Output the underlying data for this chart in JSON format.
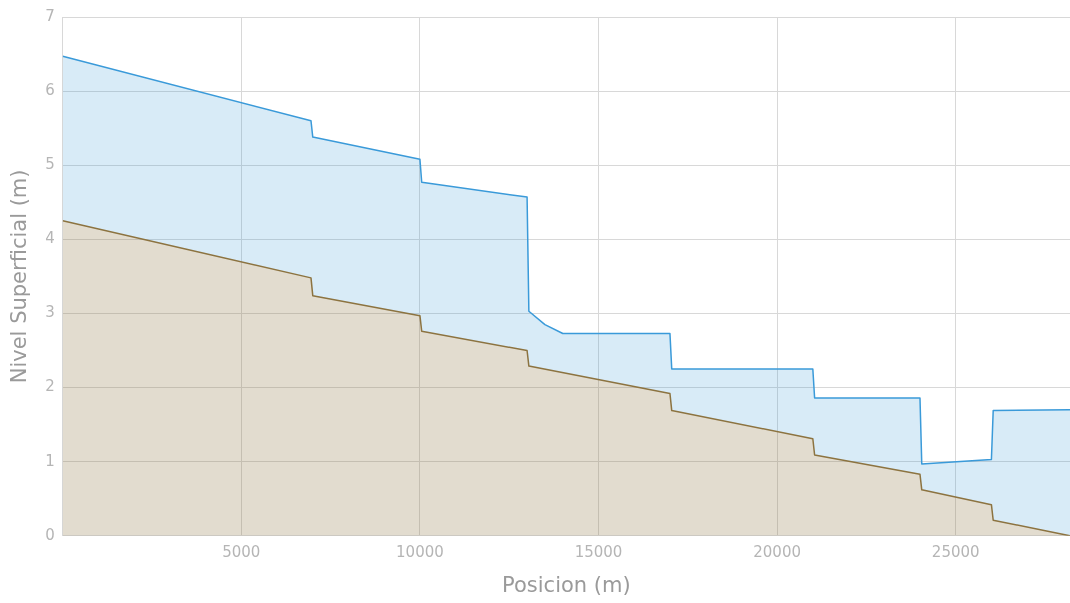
{
  "chart_data": {
    "type": "area",
    "xlabel": "Posicion (m)",
    "ylabel": "Nivel Superficial (m)",
    "xlim": [
      0,
      28200
    ],
    "ylim": [
      0,
      7
    ],
    "xticks": [
      5000,
      10000,
      15000,
      20000,
      25000
    ],
    "yticks": [
      0,
      1,
      2,
      3,
      4,
      5,
      6,
      7
    ],
    "grid": true,
    "legend": false,
    "marker": "none",
    "line_style": "solid",
    "series": [
      {
        "color": "#8c7340",
        "x": [
          0,
          6950,
          7000,
          10000,
          10050,
          13000,
          13050,
          17000,
          17050,
          21000,
          21050,
          24000,
          24050,
          26000,
          26050,
          28200
        ],
        "values": [
          4.25,
          3.48,
          3.24,
          2.97,
          2.76,
          2.5,
          2.29,
          1.92,
          1.69,
          1.31,
          1.09,
          0.83,
          0.62,
          0.42,
          0.21,
          0
        ]
      },
      {
        "color": "#3a9ad9",
        "x": [
          0,
          6950,
          7000,
          10000,
          10050,
          13000,
          13050,
          13500,
          14000,
          17000,
          17050,
          21000,
          21050,
          24000,
          24050,
          26000,
          26050,
          28200
        ],
        "values": [
          6.47,
          5.6,
          5.38,
          5.08,
          4.77,
          4.57,
          3.03,
          2.85,
          2.73,
          2.73,
          2.25,
          2.25,
          1.86,
          1.86,
          0.97,
          1.03,
          1.69,
          1.7
        ]
      }
    ]
  }
}
